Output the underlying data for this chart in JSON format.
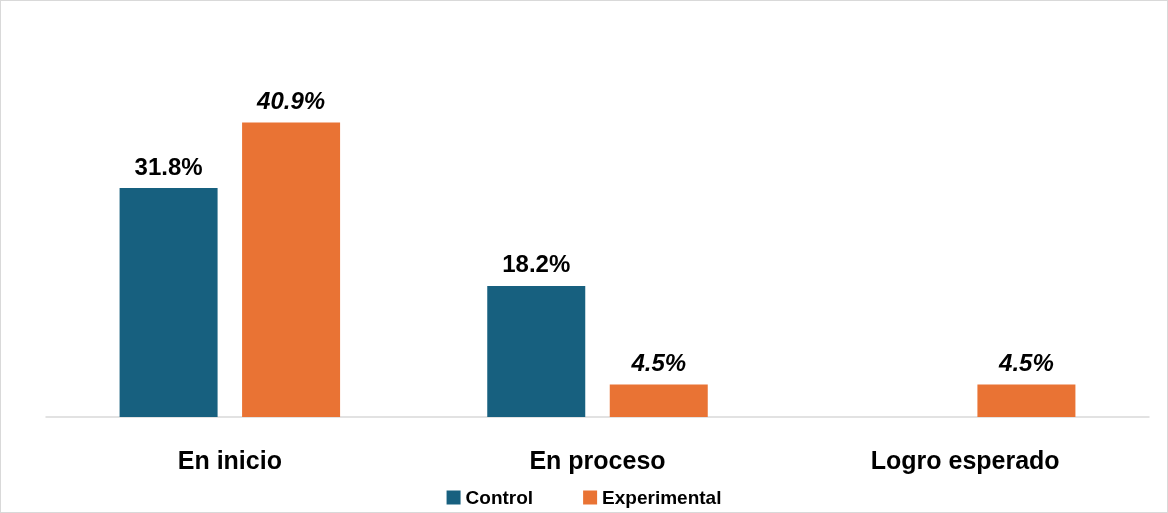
{
  "chart_data": {
    "type": "bar",
    "categories": [
      "En inicio",
      "En proceso",
      "Logro esperado"
    ],
    "series": [
      {
        "name": "Control",
        "color": "#17607f",
        "values": [
          31.8,
          18.2,
          null
        ],
        "value_labels": [
          "31.8%",
          "18.2%",
          null
        ]
      },
      {
        "name": "Experimental",
        "color": "#e97334",
        "values": [
          40.9,
          4.5,
          4.5
        ],
        "value_labels": [
          "40.9%",
          "4.5%",
          "4.5%"
        ]
      }
    ],
    "legend": "bottom"
  }
}
